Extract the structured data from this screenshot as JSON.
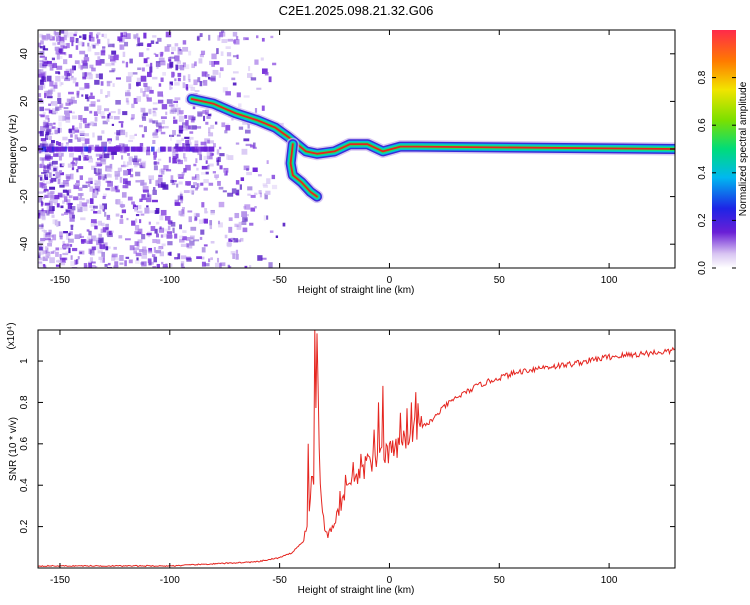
{
  "title": "C2E1.2025.098.21.32.G06",
  "colors": {
    "snr_line": "#e52620",
    "axes": "#000000",
    "background": "#ffffff"
  },
  "chart_data": [
    {
      "type": "heatmap",
      "xlabel": "Height of straight line (km)",
      "ylabel": "Frequency (Hz)",
      "xlim": [
        -160,
        130
      ],
      "ylim": [
        -50,
        50
      ],
      "xticks": [
        -150,
        -100,
        -50,
        0,
        50,
        100
      ],
      "yticks": [
        -40,
        -20,
        0,
        20,
        40
      ],
      "colorbar": {
        "label": "Normalized spectral amplitude",
        "range": [
          0,
          1
        ],
        "ticks": [
          0.0,
          0.2,
          0.4,
          0.6,
          0.8
        ]
      },
      "ridges": [
        {
          "points": [
            [
              -90,
              21
            ],
            [
              -80,
              19
            ],
            [
              -70,
              15
            ],
            [
              -60,
              12
            ],
            [
              -52,
              9
            ],
            [
              -46,
              5
            ],
            [
              -42,
              2
            ],
            [
              -38,
              -1
            ],
            [
              -33,
              -2
            ],
            [
              -25,
              -1
            ],
            [
              -18,
              2
            ],
            [
              -10,
              2
            ],
            [
              -3,
              -1
            ],
            [
              5,
              1
            ],
            [
              12,
              1
            ],
            [
              130,
              0
            ]
          ]
        },
        {
          "points": [
            [
              -44,
              2
            ],
            [
              -45,
              -6
            ],
            [
              -44,
              -11
            ],
            [
              -40,
              -14
            ],
            [
              -36,
              -18
            ],
            [
              -33,
              -20
            ]
          ]
        }
      ]
    },
    {
      "type": "line",
      "xlabel": "Height of straight line (km)",
      "ylabel": "SNR (10 * v/v)",
      "yscale_note": "(x10⁴)",
      "xlim": [
        -160,
        130
      ],
      "ylim": [
        0,
        1.15
      ],
      "xticks": [
        -150,
        -100,
        -50,
        0,
        50,
        100
      ],
      "yticks": [
        0.2,
        0.4,
        0.6,
        0.8,
        1.0
      ],
      "series": [
        {
          "x": [
            -160,
            -140,
            -120,
            -100,
            -80,
            -60,
            -50,
            -45,
            -40,
            -37,
            -35,
            -34,
            -33,
            -32,
            -31,
            -30,
            -28,
            -25,
            -22,
            -20,
            -15,
            -10,
            -5,
            0,
            5,
            10,
            15,
            20,
            25,
            30,
            40,
            50,
            60,
            70,
            80,
            90,
            100,
            110,
            120,
            130
          ],
          "values": [
            0.01,
            0.01,
            0.01,
            0.01,
            0.02,
            0.03,
            0.05,
            0.07,
            0.12,
            0.2,
            0.48,
            0.35,
            1.1,
            0.55,
            0.3,
            0.2,
            0.15,
            0.22,
            0.3,
            0.36,
            0.42,
            0.5,
            0.52,
            0.55,
            0.6,
            0.62,
            0.68,
            0.72,
            0.78,
            0.82,
            0.88,
            0.92,
            0.95,
            0.97,
            0.98,
            1.0,
            1.02,
            1.03,
            1.04,
            1.05
          ]
        }
      ],
      "spikes": [
        [
          -37,
          0.6
        ],
        [
          -34,
          1.15
        ],
        [
          -30,
          0.25
        ],
        [
          -20,
          0.45
        ],
        [
          -10,
          0.55
        ],
        [
          -5,
          0.8
        ],
        [
          -3,
          0.88
        ],
        [
          5,
          0.75
        ],
        [
          10,
          0.8
        ],
        [
          12,
          0.85
        ]
      ]
    }
  ]
}
